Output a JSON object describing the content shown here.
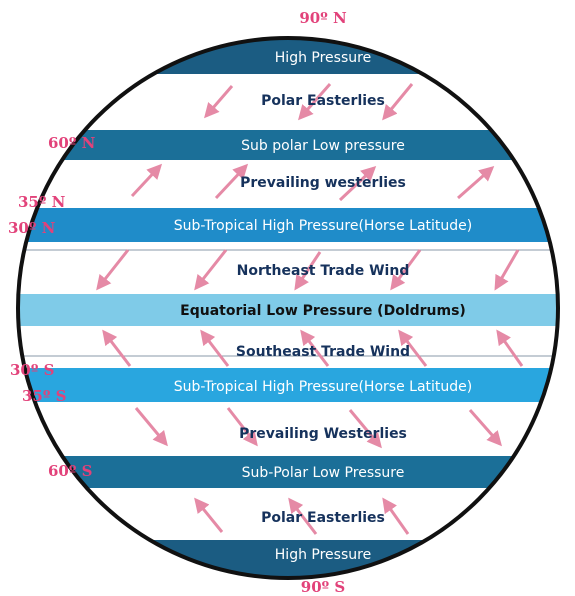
{
  "latitudes": {
    "n90": "90º N",
    "n60": "60º N",
    "n35": "35º N",
    "n30": "30º N",
    "s30": "30º S",
    "s35": "35º S",
    "s60": "60º S",
    "s90": "90º S"
  },
  "pressure_belts": {
    "north_polar_high": "High Pressure",
    "north_subpolar_low": "Sub polar Low pressure",
    "north_subtropical_high": "Sub-Tropical High Pressure(Horse Latitude)",
    "equatorial_low": "Equatorial Low Pressure (Doldrums)",
    "south_subtropical_high": "Sub-Tropical High Pressure(Horse Latitude)",
    "south_subpolar_low": "Sub-Polar Low Pressure",
    "south_polar_high": "High Pressure"
  },
  "winds": {
    "north_polar_easterlies": "Polar Easterlies",
    "north_westerlies": "Prevailing westerlies",
    "north_trade": "Northeast Trade Wind",
    "south_trade": "Southeast Trade Wind",
    "south_westerlies": "Prevailing Westerlies",
    "south_polar_easterlies": "Polar Easterlies"
  },
  "colors": {
    "dark_band": "#1b5c82",
    "mid_band": "#1f8cc9",
    "light_band": "#7fcbe8",
    "arrow": "#e58aa6",
    "latitude_text": "#e2427a",
    "outline": "#111111"
  }
}
